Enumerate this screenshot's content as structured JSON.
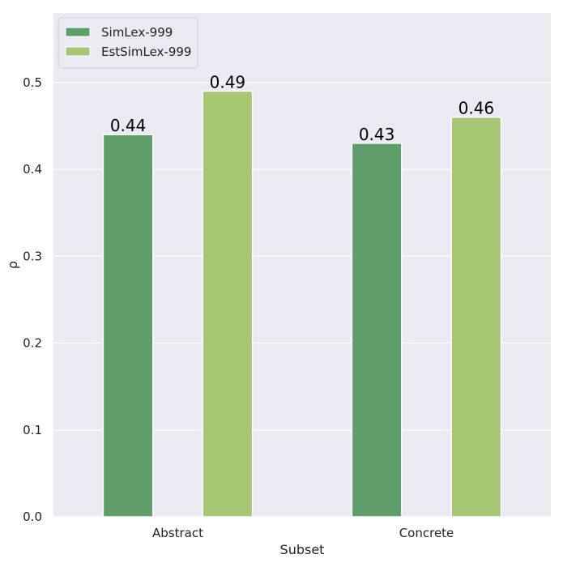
{
  "chart_data": {
    "type": "bar",
    "categories": [
      "Abstract",
      "Concrete"
    ],
    "series": [
      {
        "name": "SimLex-999",
        "values": [
          0.44,
          0.43
        ],
        "color": "#5f9e6a"
      },
      {
        "name": "EstSimLex-999",
        "values": [
          0.49,
          0.46
        ],
        "color": "#a8c774"
      }
    ],
    "data_labels": [
      [
        "0.44",
        "0.43"
      ],
      [
        "0.49",
        "0.46"
      ]
    ],
    "xlabel": "Subset",
    "ylabel": "ρ",
    "ylim": [
      0,
      0.58
    ],
    "yticks": [
      0.0,
      0.1,
      0.2,
      0.3,
      0.4,
      0.5
    ],
    "ytick_labels": [
      "0.0",
      "0.1",
      "0.2",
      "0.3",
      "0.4",
      "0.5"
    ],
    "grid": true,
    "legend_position": "top-left",
    "plot_background": "#eaeaf2",
    "grid_color": "#ffffff"
  }
}
